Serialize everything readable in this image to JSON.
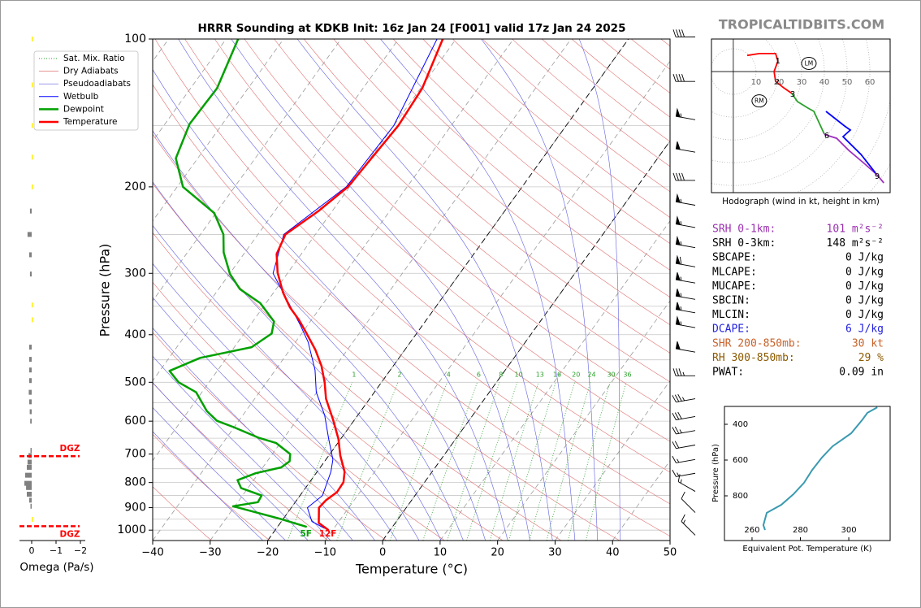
{
  "title": "HRRR Sounding at KDKB Init: 16z Jan 24 [F001] valid 17z Jan 24 2025",
  "watermark": "TROPICALTIDBITS.COM",
  "chart_data": [
    {
      "type": "skewt",
      "xlabel": "Temperature (°C)",
      "ylabel": "Pressure (hPa)",
      "xlim": [
        -40,
        50
      ],
      "ylim": [
        1050,
        100
      ],
      "log_y": true,
      "xticks": [
        {
          "value": -40,
          "label": "−40"
        },
        {
          "value": -30,
          "label": "−30"
        },
        {
          "value": -20,
          "label": "−20"
        },
        {
          "value": -10,
          "label": "−10"
        },
        0,
        10,
        20,
        30,
        40,
        50
      ],
      "yticks": [
        100,
        200,
        300,
        400,
        500,
        600,
        700,
        800,
        900,
        1000
      ],
      "minor_grid": [
        150,
        250,
        350,
        450,
        550,
        650,
        750,
        850,
        950
      ],
      "highlight_isotherms": [
        -20,
        0
      ],
      "background_lines": [
        {
          "name": "Sat. Mix. Ratio",
          "color": "#2ca02c"
        },
        {
          "name": "Dry Adiabats",
          "color": "#e07070"
        },
        {
          "name": "Pseudoadiabats",
          "color": "#6060e0"
        }
      ],
      "mixing_ratios": [
        1,
        2,
        4,
        6,
        8,
        10,
        13,
        16,
        20,
        24,
        30,
        36
      ],
      "series": [
        {
          "name": "Wetbulb",
          "color": "#0000ff",
          "pressure": [
            992,
            960,
            900,
            850,
            761,
            718,
            652,
            583,
            524,
            472,
            414,
            383,
            300,
            250,
            200,
            150,
            100
          ],
          "values": [
            -11.6,
            -14.7,
            -17.2,
            -16.1,
            -17.6,
            -18.8,
            -22.1,
            -25.8,
            -30.1,
            -33.1,
            -37.8,
            -41.2,
            -52.5,
            -55.5,
            -50.6,
            -50.0,
            -53.3
          ]
        },
        {
          "name": "Dewpoint",
          "color": "#00a000",
          "surface_label": "5F",
          "pressure": [
            985,
            948,
            894,
            877,
            850,
            821,
            791,
            766,
            745,
            724,
            700,
            665,
            648,
            617,
            599,
            572,
            524,
            500,
            474,
            446,
            424,
            398,
            376,
            345,
            323,
            301,
            272,
            250,
            226,
            200,
            175,
            149,
            126,
            100
          ],
          "values": [
            -14.9,
            -20.6,
            -30.3,
            -26.5,
            -26.7,
            -31.2,
            -32.8,
            -30.5,
            -26.8,
            -26.1,
            -26.9,
            -30.7,
            -34.5,
            -40.1,
            -43.8,
            -46.8,
            -51.0,
            -55.3,
            -58.3,
            -54.6,
            -47.0,
            -45.2,
            -46.3,
            -51.0,
            -56.3,
            -59.9,
            -63.7,
            -66.0,
            -70.3,
            -79.0,
            -83.8,
            -85.7,
            -85.4,
            -87.9
          ]
        },
        {
          "name": "Temperature",
          "color": "#ff0000",
          "surface_label": "12F",
          "pressure": [
            1000,
            967,
            900,
            869,
            837,
            799,
            761,
            705,
            652,
            595,
            540,
            500,
            463,
            429,
            398,
            373,
            352,
            328,
            299,
            274,
            250,
            224,
            200,
            150,
            126,
            100
          ],
          "values": [
            -10.7,
            -13.3,
            -15.2,
            -14.9,
            -14.0,
            -14.1,
            -15.2,
            -18.0,
            -20.4,
            -23.8,
            -27.6,
            -29.9,
            -32.5,
            -35.6,
            -39.1,
            -42.2,
            -45.3,
            -48.4,
            -51.8,
            -54.3,
            -55.2,
            -52.4,
            -50.3,
            -49.2,
            -49.7,
            -52.3
          ]
        }
      ],
      "wind_barbs": {
        "pressure": [
          99,
          122,
          146,
          170,
          194,
          218,
          242,
          266,
          291,
          314,
          339,
          361,
          387,
          434,
          485,
          540,
          587,
          627,
          671,
          718,
          766,
          834,
          921,
          1024
        ],
        "direction": [
          270,
          270,
          280,
          280,
          270,
          280,
          280,
          280,
          280,
          280,
          280,
          280,
          280,
          280,
          270,
          260,
          260,
          260,
          260,
          260,
          260,
          300,
          315,
          315
        ],
        "speed": [
          40,
          40,
          55,
          50,
          40,
          55,
          55,
          55,
          60,
          55,
          55,
          55,
          55,
          50,
          35,
          35,
          30,
          25,
          20,
          15,
          15,
          15,
          10,
          15
        ]
      }
    },
    {
      "type": "bar",
      "xlabel": "Omega (Pa/s)",
      "xlim": [
        0.5,
        -2.2
      ],
      "ylim": [
        1050,
        100
      ],
      "xticks": [
        0,
        {
          "value": -1,
          "label": "−1"
        },
        {
          "value": -2,
          "label": "−2"
        }
      ],
      "positive_color": "#808080",
      "negative_color": "#ffee00",
      "pressure": [
        100,
        124,
        150,
        174,
        200,
        224,
        250,
        275,
        301,
        348,
        373,
        424,
        449,
        472,
        496,
        524,
        548,
        574,
        600,
        688,
        705,
        727,
        745,
        773,
        803,
        819,
        845,
        869,
        894,
        951
      ],
      "values": [
        -0.03,
        -0.03,
        -0.03,
        -0.03,
        -0.03,
        0.07,
        0.17,
        0.1,
        0.07,
        -0.03,
        -0.03,
        0.1,
        0.1,
        0.1,
        0.1,
        0.12,
        0.1,
        0.08,
        0.06,
        0.05,
        0.13,
        0.17,
        0.2,
        0.27,
        0.3,
        0.23,
        0.2,
        0.1,
        0.05,
        -0.03
      ],
      "dgz": {
        "label": "DGZ",
        "color": "#ff0000",
        "pressure": [
          707,
          982
        ]
      }
    },
    {
      "type": "hodograph",
      "caption": "Hodograph (wind in kt, height in km)",
      "xlim": [
        -9.6,
        68.9
      ],
      "ylim": [
        -53.2,
        14.3
      ],
      "ring_labels": [
        10,
        20,
        30,
        40,
        50,
        60
      ],
      "segments": [
        {
          "color": "#ff0000",
          "u": [
            6.1,
            11.4,
            18.6,
            19.6,
            17.9,
            18.6,
            22.1,
            25.7
          ],
          "v": [
            7.1,
            7.9,
            7.9,
            4.6,
            0,
            -4.3,
            -7.1,
            -9.6
          ]
        },
        {
          "color": "#2ca02c",
          "u": [
            25.7,
            28.2,
            32.9,
            35.4,
            37.5,
            40.0
          ],
          "v": [
            -9.6,
            -13.2,
            -16.1,
            -17.5,
            -22.1,
            -27.5
          ]
        },
        {
          "color": "#a030c0",
          "u": [
            40.0,
            41.8,
            45.4,
            50.7,
            57.9,
            63.2,
            66.1
          ],
          "v": [
            -27.5,
            -28.2,
            -29.3,
            -34.6,
            -40.7,
            -45.4,
            -48.9
          ]
        },
        {
          "color": "#0000ff",
          "u": [
            62.5,
            56.1,
            48.2,
            51.4,
            48.9,
            40.7
          ],
          "v": [
            -44.6,
            -36.4,
            -28.6,
            -25.7,
            -23.9,
            -17.5
          ]
        }
      ],
      "height_labels": {
        "labels": [
          "1",
          "2",
          "3",
          "6",
          "9"
        ],
        "u": [
          19.6,
          19.3,
          26.1,
          41.1,
          63.2
        ],
        "v": [
          4.6,
          -4.6,
          -10.0,
          -28.2,
          -46.1
        ]
      },
      "storm_motion": {
        "labels": [
          "RM",
          "LM"
        ],
        "u": [
          11.4,
          33.2
        ],
        "v": [
          -12.9,
          3.6
        ]
      }
    },
    {
      "type": "line",
      "xlabel": "Equivalent Pot. Temperature (K)",
      "ylabel": "Pressure (hPa)",
      "xlim": [
        248.6,
        317.1
      ],
      "ylim": [
        1050,
        300
      ],
      "xticks": [
        260,
        280,
        300
      ],
      "yticks": [
        400,
        600,
        800
      ],
      "color": "#3a9ab0",
      "pressure": [
        991,
        964,
        895,
        850,
        791,
        727,
        655,
        586,
        523,
        450,
        373,
        336,
        305
      ],
      "values": [
        265.4,
        264.7,
        266.1,
        272.1,
        277.1,
        281.5,
        284.9,
        288.9,
        293.3,
        301.0,
        305.7,
        307.7,
        311.8
      ]
    }
  ],
  "parameters": [
    {
      "label": "SRH 0-1km:",
      "value": "101 m²s⁻²",
      "color": "#9b30b0"
    },
    {
      "label": "SRH 0-3km:",
      "value": "148 m²s⁻²",
      "color": "#000000"
    },
    {
      "label": "SBCAPE:",
      "value": "0 J/kg",
      "color": "#000000"
    },
    {
      "label": "MLCAPE:",
      "value": "0 J/kg",
      "color": "#000000"
    },
    {
      "label": "MUCAPE:",
      "value": "0 J/kg",
      "color": "#000000"
    },
    {
      "label": "SBCIN:",
      "value": "0 J/kg",
      "color": "#000000"
    },
    {
      "label": "MLCIN:",
      "value": "0 J/kg",
      "color": "#000000"
    },
    {
      "label": "DCAPE:",
      "value": "6 J/kg",
      "color": "#2222dd"
    },
    {
      "label": "SHR 200-850mb:",
      "value": "30 kt",
      "color": "#c8622a"
    },
    {
      "label": "RH 300-850mb:",
      "value": "29 %",
      "color": "#8b5a00"
    },
    {
      "label": "PWAT:",
      "value": "0.09 in",
      "color": "#000000"
    }
  ]
}
